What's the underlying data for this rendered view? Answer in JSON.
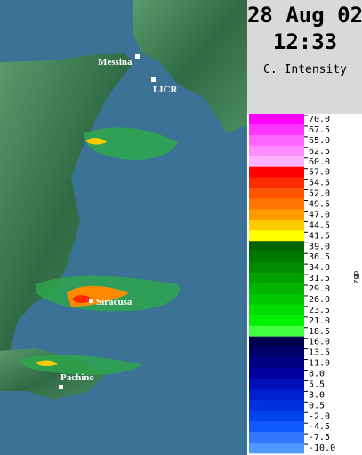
{
  "header": {
    "date": "28 Aug 02",
    "time": "12:33",
    "product": "C. Intensity"
  },
  "places": [
    {
      "label": "Messina"
    },
    {
      "label": "LICR"
    },
    {
      "label": "Siracusa"
    },
    {
      "label": "Pachino"
    }
  ],
  "legend": {
    "unit": "dBz",
    "levels": [
      {
        "label": "70.0",
        "color": "#ff00ff"
      },
      {
        "label": "67.5",
        "color": "#ff33ff"
      },
      {
        "label": "65.0",
        "color": "#ff66ff"
      },
      {
        "label": "62.5",
        "color": "#ff8cff"
      },
      {
        "label": "60.0",
        "color": "#ffb0ff"
      },
      {
        "label": "57.0",
        "color": "#ff0000"
      },
      {
        "label": "54.5",
        "color": "#ff2a00"
      },
      {
        "label": "52.0",
        "color": "#ff5500"
      },
      {
        "label": "49.5",
        "color": "#ff7700"
      },
      {
        "label": "47.0",
        "color": "#ff9900"
      },
      {
        "label": "44.5",
        "color": "#ffcc00"
      },
      {
        "label": "41.5",
        "color": "#ffff00"
      },
      {
        "label": "39.0",
        "color": "#006400"
      },
      {
        "label": "36.5",
        "color": "#007800"
      },
      {
        "label": "34.0",
        "color": "#008a00"
      },
      {
        "label": "31.5",
        "color": "#00a000"
      },
      {
        "label": "29.0",
        "color": "#00b400"
      },
      {
        "label": "26.0",
        "color": "#00c800"
      },
      {
        "label": "23.5",
        "color": "#00dc00"
      },
      {
        "label": "21.0",
        "color": "#00f000"
      },
      {
        "label": "18.5",
        "color": "#40ff40"
      },
      {
        "label": "16.0",
        "color": "#00004f"
      },
      {
        "label": "13.5",
        "color": "#00006a"
      },
      {
        "label": "11.0",
        "color": "#000085"
      },
      {
        "label": "8.0",
        "color": "#0000a0"
      },
      {
        "label": "5.5",
        "color": "#0010b8"
      },
      {
        "label": "3.0",
        "color": "#0022cc"
      },
      {
        "label": "0.5",
        "color": "#0033dd"
      },
      {
        "label": "-2.0",
        "color": "#0044ee"
      },
      {
        "label": "-4.5",
        "color": "#1158ff"
      },
      {
        "label": "-7.5",
        "color": "#3377ff"
      },
      {
        "label": "-10.0",
        "color": "#4d99ff"
      }
    ]
  }
}
